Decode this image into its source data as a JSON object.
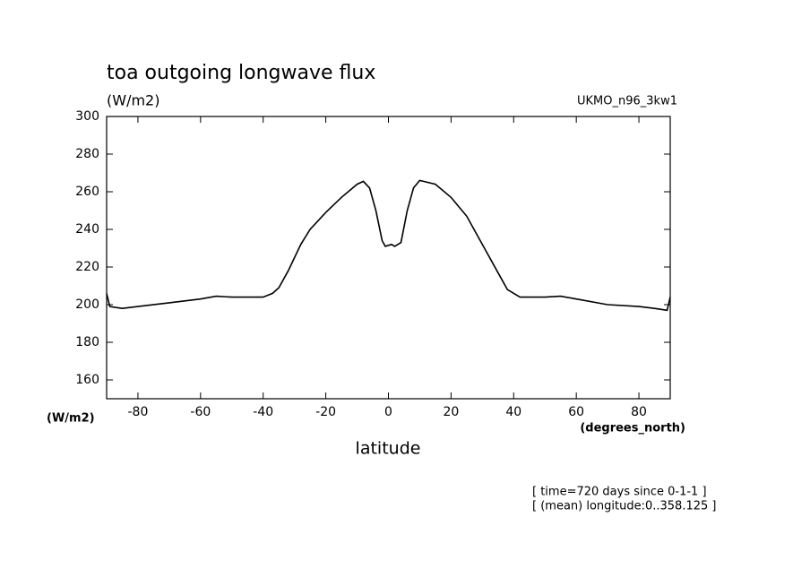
{
  "chart_data": {
    "type": "line",
    "title": "toa outgoing longwave flux",
    "subtitle": "(W/m2)",
    "model_label": "UKMO_n96_3kw1",
    "y_label": "(W/m2)",
    "x_units": "(degrees_north)",
    "x_label": "latitude",
    "notes": [
      "[ time=720 days since 0-1-1 ]",
      "[ (mean) longitude:0..358.125 ]"
    ],
    "x": [
      -90,
      -89,
      -85,
      -80,
      -70,
      -60,
      -55,
      -50,
      -45,
      -40,
      -37,
      -35,
      -32,
      -28,
      -25,
      -20,
      -15,
      -10,
      -8,
      -6,
      -4,
      -2,
      -1,
      1,
      2,
      4,
      6,
      8,
      10,
      15,
      20,
      25,
      30,
      35,
      38,
      42,
      50,
      55,
      60,
      70,
      80,
      85,
      89,
      90
    ],
    "series": [
      {
        "name": "toa outgoing longwave flux",
        "color": "#000000",
        "values": [
          206,
          199,
          198,
          199,
          201,
          203,
          204.5,
          204,
          204,
          204,
          206,
          209,
          218,
          232,
          240,
          249,
          257,
          264,
          265.5,
          262,
          250,
          234,
          231,
          232,
          231,
          233,
          250,
          262,
          266,
          264,
          257,
          247,
          232,
          217,
          208,
          204,
          204,
          204.5,
          203,
          200,
          199,
          198,
          197,
          204
        ]
      }
    ],
    "xlim": [
      -90,
      90
    ],
    "xticks": [
      -80,
      -60,
      -40,
      -20,
      0,
      20,
      40,
      60,
      80
    ],
    "ylim": [
      150,
      300
    ],
    "yticks": [
      160,
      180,
      200,
      220,
      240,
      260,
      280,
      300
    ]
  }
}
